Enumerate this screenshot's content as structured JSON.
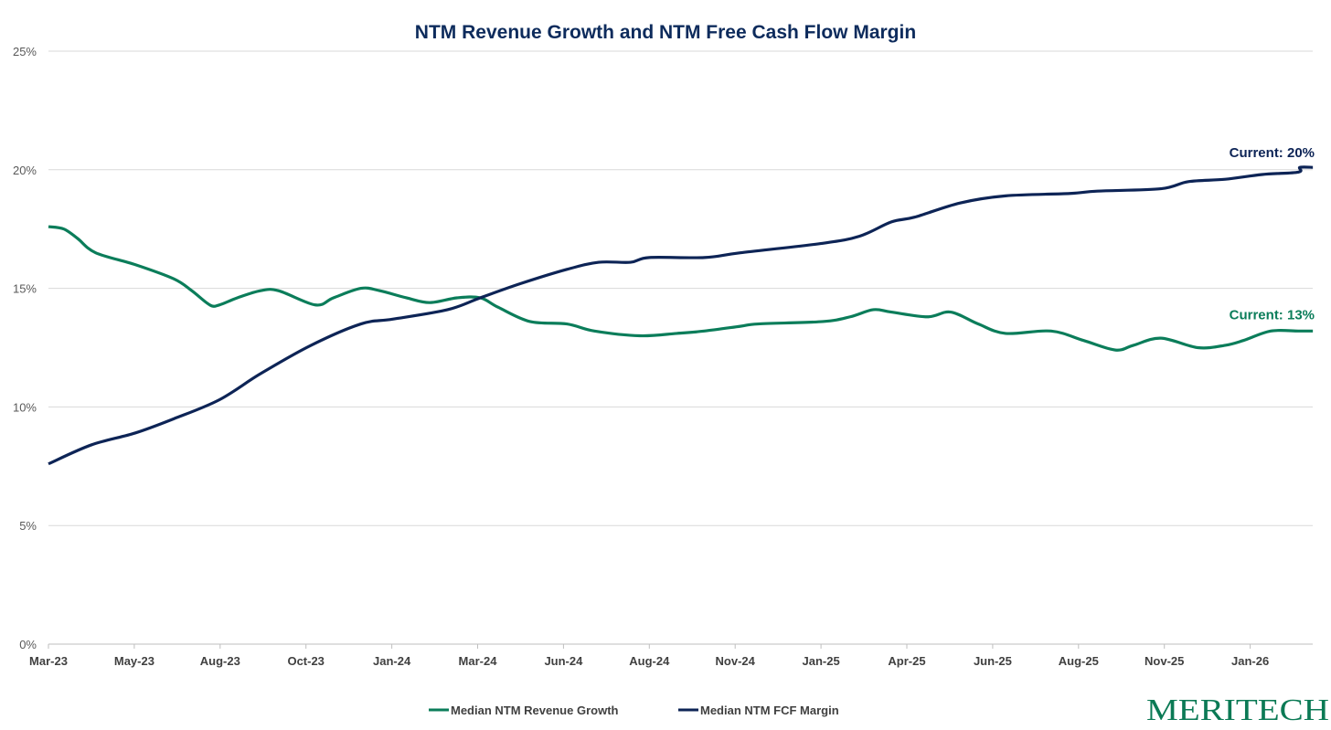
{
  "chart_data": {
    "type": "line",
    "title": "NTM Revenue Growth and NTM Free Cash Flow Margin",
    "xlabel": "",
    "ylabel": "",
    "x_unit": "tick index (0 = Mar-23, evenly spaced ticks)",
    "categories": [
      "Mar-23",
      "May-23",
      "Aug-23",
      "Oct-23",
      "Jan-24",
      "Mar-24",
      "Jun-24",
      "Aug-24",
      "Nov-24",
      "Jan-25",
      "Apr-25",
      "Jun-25",
      "Aug-25",
      "Nov-25",
      "Jan-26"
    ],
    "xlim": [
      0,
      14.73
    ],
    "ylim": [
      0,
      25
    ],
    "yticks": [
      0,
      5,
      10,
      15,
      20,
      25
    ],
    "ytick_labels": [
      "0%",
      "5%",
      "10%",
      "15%",
      "20%",
      "25%"
    ],
    "grid": true,
    "legend_position": "bottom",
    "series": [
      {
        "name": "Median NTM Revenue Growth",
        "color": "#0b7d5a",
        "points": [
          [
            0,
            17.6
          ],
          [
            0.18,
            17.5
          ],
          [
            0.34,
            17.1
          ],
          [
            0.55,
            16.5
          ],
          [
            1.01,
            16.0
          ],
          [
            1.46,
            15.4
          ],
          [
            1.67,
            14.9
          ],
          [
            1.88,
            14.3
          ],
          [
            1.99,
            14.3
          ],
          [
            2.2,
            14.6
          ],
          [
            2.47,
            14.9
          ],
          [
            2.68,
            14.9
          ],
          [
            3.11,
            14.3
          ],
          [
            3.32,
            14.6
          ],
          [
            3.64,
            15.0
          ],
          [
            3.86,
            14.9
          ],
          [
            4.17,
            14.6
          ],
          [
            4.44,
            14.4
          ],
          [
            4.76,
            14.6
          ],
          [
            5.03,
            14.6
          ],
          [
            5.24,
            14.2
          ],
          [
            5.61,
            13.6
          ],
          [
            6.04,
            13.5
          ],
          [
            6.36,
            13.2
          ],
          [
            6.89,
            13.0
          ],
          [
            7.32,
            13.1
          ],
          [
            7.64,
            13.2
          ],
          [
            8.06,
            13.4
          ],
          [
            8.27,
            13.5
          ],
          [
            9.02,
            13.6
          ],
          [
            9.34,
            13.8
          ],
          [
            9.61,
            14.1
          ],
          [
            9.82,
            14.0
          ],
          [
            10.24,
            13.8
          ],
          [
            10.51,
            14.0
          ],
          [
            10.83,
            13.5
          ],
          [
            11.15,
            13.1
          ],
          [
            11.68,
            13.2
          ],
          [
            12.06,
            12.8
          ],
          [
            12.43,
            12.4
          ],
          [
            12.64,
            12.6
          ],
          [
            12.96,
            12.9
          ],
          [
            13.39,
            12.5
          ],
          [
            13.71,
            12.6
          ],
          [
            13.92,
            12.8
          ],
          [
            14.24,
            13.2
          ],
          [
            14.56,
            13.2
          ],
          [
            14.73,
            13.2
          ]
        ]
      },
      {
        "name": "Median NTM FCF Margin",
        "color": "#0d2456",
        "points": [
          [
            0,
            7.6
          ],
          [
            0.5,
            8.4
          ],
          [
            1.01,
            8.9
          ],
          [
            1.46,
            9.5
          ],
          [
            1.99,
            10.3
          ],
          [
            2.47,
            11.4
          ],
          [
            3.06,
            12.6
          ],
          [
            3.64,
            13.5
          ],
          [
            4.01,
            13.7
          ],
          [
            4.65,
            14.1
          ],
          [
            5.03,
            14.6
          ],
          [
            5.5,
            15.2
          ],
          [
            6.04,
            15.8
          ],
          [
            6.41,
            16.1
          ],
          [
            6.78,
            16.1
          ],
          [
            7.0,
            16.3
          ],
          [
            7.64,
            16.3
          ],
          [
            8.06,
            16.5
          ],
          [
            9.02,
            16.9
          ],
          [
            9.45,
            17.2
          ],
          [
            9.82,
            17.8
          ],
          [
            10.09,
            18.0
          ],
          [
            10.62,
            18.6
          ],
          [
            11.15,
            18.9
          ],
          [
            11.9,
            19.0
          ],
          [
            12.22,
            19.1
          ],
          [
            12.96,
            19.2
          ],
          [
            13.28,
            19.5
          ],
          [
            13.71,
            19.6
          ],
          [
            14.14,
            19.8
          ],
          [
            14.56,
            19.9
          ],
          [
            14.58,
            20.1
          ],
          [
            14.73,
            20.1
          ]
        ]
      }
    ],
    "annotations": [
      {
        "text": "Current: 20%",
        "series": 1,
        "color": "#0d2456"
      },
      {
        "text": "Current: 13%",
        "series": 0,
        "color": "#0b7d5a"
      }
    ]
  },
  "brand": {
    "logo_text": "MERITECH"
  }
}
